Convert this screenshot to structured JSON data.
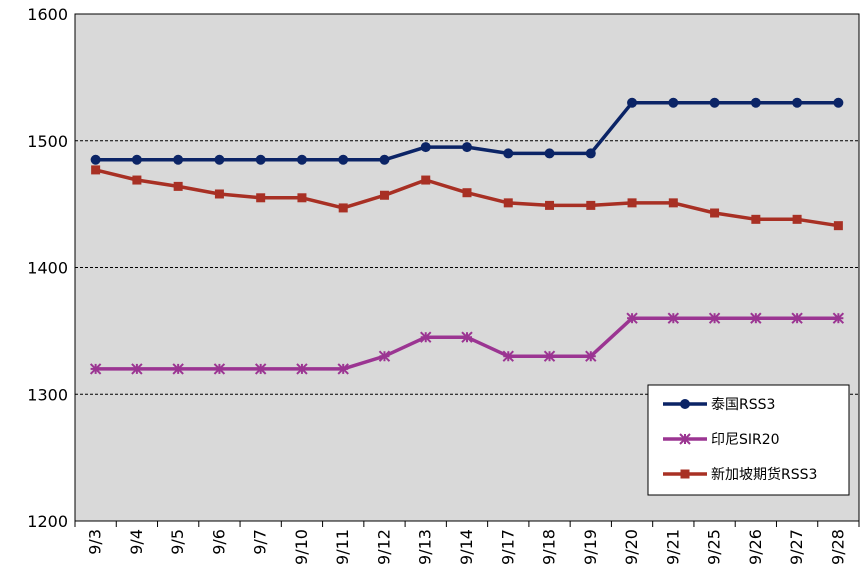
{
  "chart_data": {
    "type": "line",
    "categories": [
      "9/3",
      "9/4",
      "9/5",
      "9/6",
      "9/7",
      "9/10",
      "9/11",
      "9/12",
      "9/13",
      "9/14",
      "9/17",
      "9/18",
      "9/19",
      "9/20",
      "9/21",
      "9/25",
      "9/26",
      "9/27",
      "9/28"
    ],
    "series": [
      {
        "name": "泰国RSS3",
        "color": "#0b2466",
        "marker": "circle",
        "values": [
          1485,
          1485,
          1485,
          1485,
          1485,
          1485,
          1485,
          1485,
          1495,
          1495,
          1490,
          1490,
          1490,
          1530,
          1530,
          1530,
          1530,
          1530,
          1530
        ]
      },
      {
        "name": "印尼SIR20",
        "color": "#9b3592",
        "marker": "asterisk",
        "values": [
          1320,
          1320,
          1320,
          1320,
          1320,
          1320,
          1320,
          1330,
          1345,
          1345,
          1330,
          1330,
          1330,
          1360,
          1360,
          1360,
          1360,
          1360,
          1360
        ]
      },
      {
        "name": "新加坡期货RSS3",
        "color": "#a83024",
        "marker": "square",
        "values": [
          1477,
          1469,
          1464,
          1458,
          1455,
          1455,
          1447,
          1457,
          1469,
          1459,
          1451,
          1449,
          1449,
          1451,
          1451,
          1443,
          1438,
          1438,
          1433
        ]
      }
    ],
    "ylim": [
      1200,
      1600
    ],
    "yticks": [
      "1200",
      "1300",
      "1400",
      "1500",
      "1600"
    ],
    "title": "",
    "xlabel": "",
    "ylabel": "",
    "grid": "horizontal dashed",
    "legend_position": "bottom-right",
    "plot_background": "#d9d9d9"
  }
}
